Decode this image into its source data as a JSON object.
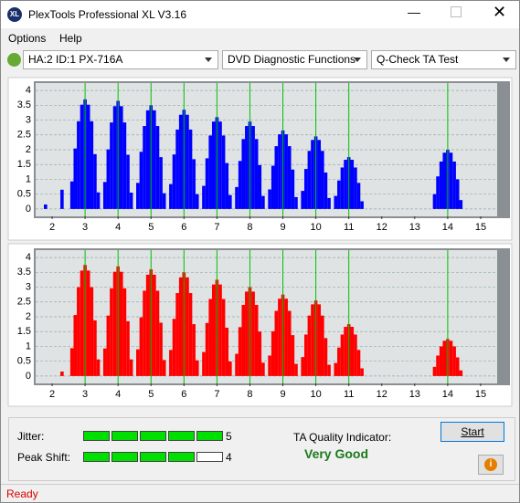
{
  "window": {
    "title": "PlexTools Professional XL V3.16"
  },
  "menu": [
    "Options",
    "Help"
  ],
  "toolbar": {
    "drive": "HA:2 ID:1  PX-716A",
    "function": "DVD Diagnostic Functions",
    "test": "Q-Check TA Test"
  },
  "charts": [
    {
      "type": "bar",
      "color": "#0000ff",
      "xlim": [
        1.5,
        15.5
      ],
      "ylim": [
        -0.25,
        4.25
      ],
      "xticks": [
        2,
        3,
        4,
        5,
        6,
        7,
        8,
        9,
        10,
        11,
        12,
        13,
        14,
        15
      ],
      "yticks": [
        0,
        {
          "value": 0.5,
          "label": "0.5"
        },
        1,
        {
          "value": 1.5,
          "label": "1.5"
        },
        2,
        {
          "value": 2.5,
          "label": "2.5"
        },
        3,
        {
          "value": 3.5,
          "label": "3.5"
        },
        4
      ],
      "peaks": [
        3,
        4,
        5,
        6,
        7,
        8,
        9,
        10,
        11,
        14
      ],
      "x": [
        1.8,
        2.3,
        2.6,
        2.7,
        2.8,
        2.9,
        3,
        3.1,
        3.2,
        3.3,
        3.4,
        3.6,
        3.7,
        3.8,
        3.9,
        4,
        4.1,
        4.2,
        4.3,
        4.4,
        4.6,
        4.7,
        4.8,
        4.9,
        5,
        5.1,
        5.2,
        5.3,
        5.4,
        5.6,
        5.7,
        5.8,
        5.9,
        6,
        6.1,
        6.2,
        6.3,
        6.4,
        6.6,
        6.7,
        6.8,
        6.9,
        7,
        7.1,
        7.2,
        7.3,
        7.4,
        7.6,
        7.7,
        7.8,
        7.9,
        8,
        8.1,
        8.2,
        8.3,
        8.4,
        8.6,
        8.7,
        8.8,
        8.9,
        9,
        9.1,
        9.2,
        9.3,
        9.4,
        9.6,
        9.7,
        9.8,
        9.9,
        10,
        10.1,
        10.2,
        10.3,
        10.4,
        10.6,
        10.7,
        10.8,
        10.9,
        11,
        11.1,
        11.2,
        11.3,
        11.4,
        13.6,
        13.7,
        13.8,
        13.9,
        14,
        14.1,
        14.2,
        14.3,
        14.4
      ],
      "values": [
        0.15,
        0.65,
        0.93,
        2.04,
        2.96,
        3.52,
        3.7,
        3.52,
        2.96,
        1.85,
        0.56,
        0.91,
        2.01,
        2.92,
        3.47,
        3.65,
        3.47,
        2.92,
        1.83,
        0.55,
        0.88,
        1.93,
        2.8,
        3.33,
        3.5,
        3.33,
        2.8,
        1.75,
        0.53,
        0.84,
        1.84,
        2.68,
        3.18,
        3.35,
        3.18,
        2.68,
        1.68,
        0.5,
        0.78,
        1.71,
        2.48,
        2.95,
        3.1,
        2.95,
        2.48,
        1.55,
        0.47,
        0.74,
        1.62,
        2.36,
        2.8,
        2.95,
        2.8,
        2.36,
        1.48,
        0.44,
        0.66,
        1.46,
        2.12,
        2.52,
        2.65,
        2.52,
        2.12,
        1.33,
        0.4,
        0.61,
        1.35,
        1.96,
        2.33,
        2.45,
        2.33,
        1.96,
        1.23,
        0.37,
        0.44,
        0.96,
        1.4,
        1.66,
        1.75,
        1.66,
        1.4,
        0.88,
        0.26,
        0.5,
        1.1,
        1.6,
        1.9,
        2.0,
        1.9,
        1.6,
        1.0,
        0.3
      ]
    },
    {
      "type": "bar",
      "color": "#ff0000",
      "xlim": [
        1.5,
        15.5
      ],
      "ylim": [
        -0.25,
        4.25
      ],
      "xticks": [
        2,
        3,
        4,
        5,
        6,
        7,
        8,
        9,
        10,
        11,
        12,
        13,
        14,
        15
      ],
      "yticks": [
        0,
        {
          "value": 0.5,
          "label": "0.5"
        },
        1,
        {
          "value": 1.5,
          "label": "1.5"
        },
        2,
        {
          "value": 2.5,
          "label": "2.5"
        },
        3,
        {
          "value": 3.5,
          "label": "3.5"
        },
        4
      ],
      "peaks": [
        3,
        4,
        5,
        6,
        7,
        8,
        9,
        10,
        11,
        14
      ],
      "x": [
        2.3,
        2.6,
        2.7,
        2.8,
        2.9,
        3,
        3.1,
        3.2,
        3.3,
        3.4,
        3.6,
        3.7,
        3.8,
        3.9,
        4,
        4.1,
        4.2,
        4.3,
        4.4,
        4.6,
        4.7,
        4.8,
        4.9,
        5,
        5.1,
        5.2,
        5.3,
        5.4,
        5.6,
        5.7,
        5.8,
        5.9,
        6,
        6.1,
        6.2,
        6.3,
        6.4,
        6.6,
        6.7,
        6.8,
        6.9,
        7,
        7.1,
        7.2,
        7.3,
        7.4,
        7.6,
        7.7,
        7.8,
        7.9,
        8,
        8.1,
        8.2,
        8.3,
        8.4,
        8.6,
        8.7,
        8.8,
        8.9,
        9,
        9.1,
        9.2,
        9.3,
        9.4,
        9.6,
        9.7,
        9.8,
        9.9,
        10,
        10.1,
        10.2,
        10.3,
        10.4,
        10.6,
        10.7,
        10.8,
        10.9,
        11,
        11.1,
        11.2,
        11.3,
        11.4,
        13.6,
        13.7,
        13.8,
        13.9,
        14,
        14.1,
        14.2,
        14.3,
        14.4
      ],
      "values": [
        0.15,
        0.94,
        2.06,
        3.0,
        3.56,
        3.75,
        3.56,
        3.0,
        1.88,
        0.56,
        0.93,
        2.04,
        2.96,
        3.52,
        3.7,
        3.52,
        2.96,
        1.85,
        0.56,
        0.9,
        1.98,
        2.88,
        3.42,
        3.6,
        3.42,
        2.88,
        1.8,
        0.54,
        0.88,
        1.93,
        2.8,
        3.33,
        3.5,
        3.33,
        2.8,
        1.75,
        0.53,
        0.81,
        1.79,
        2.6,
        3.09,
        3.25,
        3.09,
        2.6,
        1.63,
        0.49,
        0.75,
        1.65,
        2.4,
        2.85,
        3.0,
        2.85,
        2.4,
        1.5,
        0.45,
        0.69,
        1.51,
        2.2,
        2.61,
        2.75,
        2.61,
        2.2,
        1.38,
        0.41,
        0.64,
        1.4,
        2.04,
        2.42,
        2.55,
        2.42,
        2.04,
        1.28,
        0.38,
        0.44,
        0.96,
        1.4,
        1.66,
        1.75,
        1.66,
        1.4,
        0.88,
        0.26,
        0.31,
        0.69,
        1.0,
        1.19,
        1.25,
        1.19,
        1.0,
        0.63,
        0.19
      ]
    }
  ],
  "results": {
    "jitter_label": "Jitter:",
    "jitter": 5,
    "peak_shift_label": "Peak Shift:",
    "peak_shift": 4,
    "quality_label": "TA Quality Indicator:",
    "quality": "Very Good",
    "start": "Start"
  },
  "status": "Ready"
}
